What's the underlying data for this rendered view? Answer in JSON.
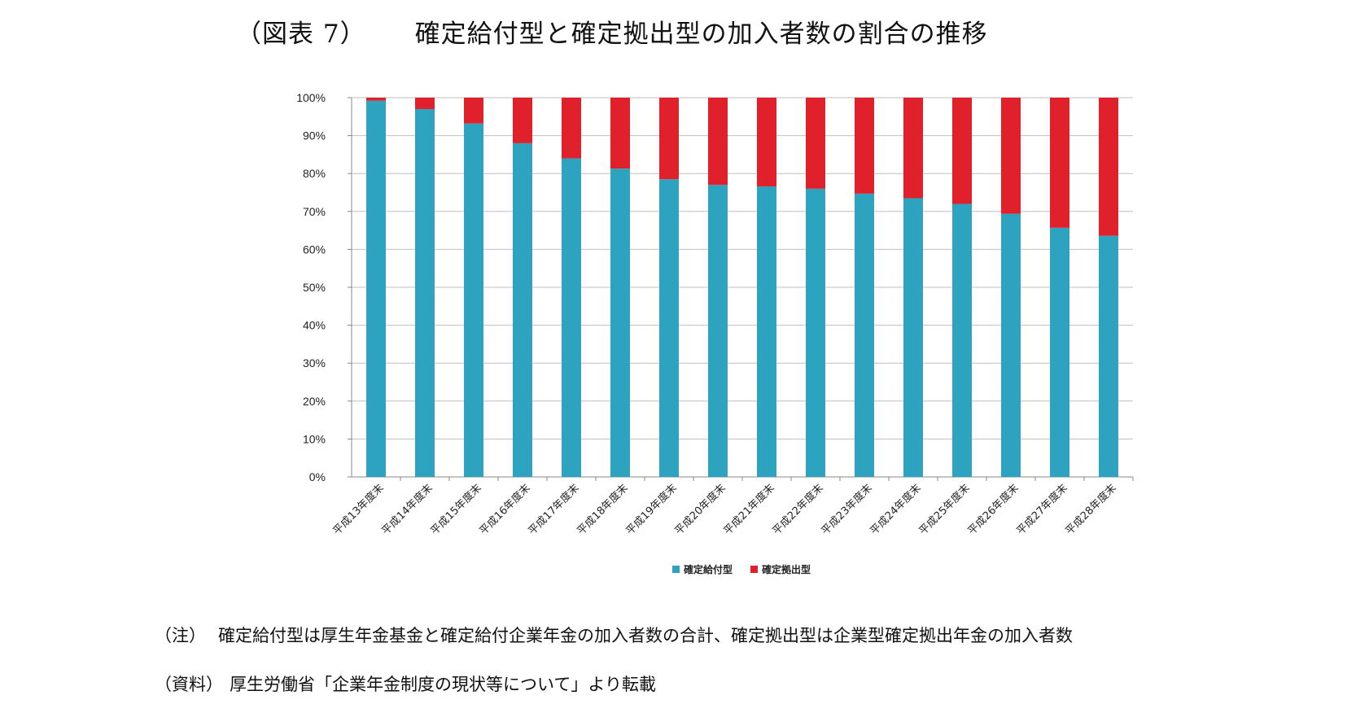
{
  "figure": {
    "label": "（図表 7）",
    "title": "確定給付型と確定拠出型の加入者数の割合の推移"
  },
  "notes": {
    "note_tag": "（注）",
    "note_text": "確定給付型は厚生年金基金と確定給付企業年金の加入者数の合計、確定拠出型は企業型確定拠出年金の加入者数",
    "source_tag": "（資料）",
    "source_text": "厚生労働省「企業年金制度の現状等について」より転載"
  },
  "colors": {
    "db": "#2ea3bf",
    "dc": "#e0202b",
    "grid": "#bfbfbf",
    "axis": "#888888"
  },
  "chart_data": {
    "type": "bar",
    "stacked": true,
    "categories": [
      "平成13年度末",
      "平成14年度末",
      "平成15年度末",
      "平成16年度末",
      "平成17年度末",
      "平成18年度末",
      "平成19年度末",
      "平成20年度末",
      "平成21年度末",
      "平成22年度末",
      "平成23年度末",
      "平成24年度末",
      "平成25年度末",
      "平成26年度末",
      "平成27年度末",
      "平成28年度末"
    ],
    "series": [
      {
        "name": "確定給付型",
        "values": [
          99.2,
          97.0,
          93.2,
          88.0,
          84.0,
          81.3,
          78.5,
          77.0,
          76.6,
          76.0,
          74.7,
          73.5,
          72.0,
          69.4,
          65.7,
          63.6
        ]
      },
      {
        "name": "確定拠出型",
        "values": [
          0.8,
          3.0,
          6.8,
          12.0,
          16.0,
          18.7,
          21.5,
          23.0,
          23.4,
          24.0,
          25.3,
          26.5,
          28.0,
          30.6,
          34.3,
          36.4
        ]
      }
    ],
    "ylim": [
      0,
      100
    ],
    "yticks": [
      "0%",
      "10%",
      "20%",
      "30%",
      "40%",
      "50%",
      "60%",
      "70%",
      "80%",
      "90%",
      "100%"
    ],
    "grid": true,
    "legend_position": "bottom"
  }
}
